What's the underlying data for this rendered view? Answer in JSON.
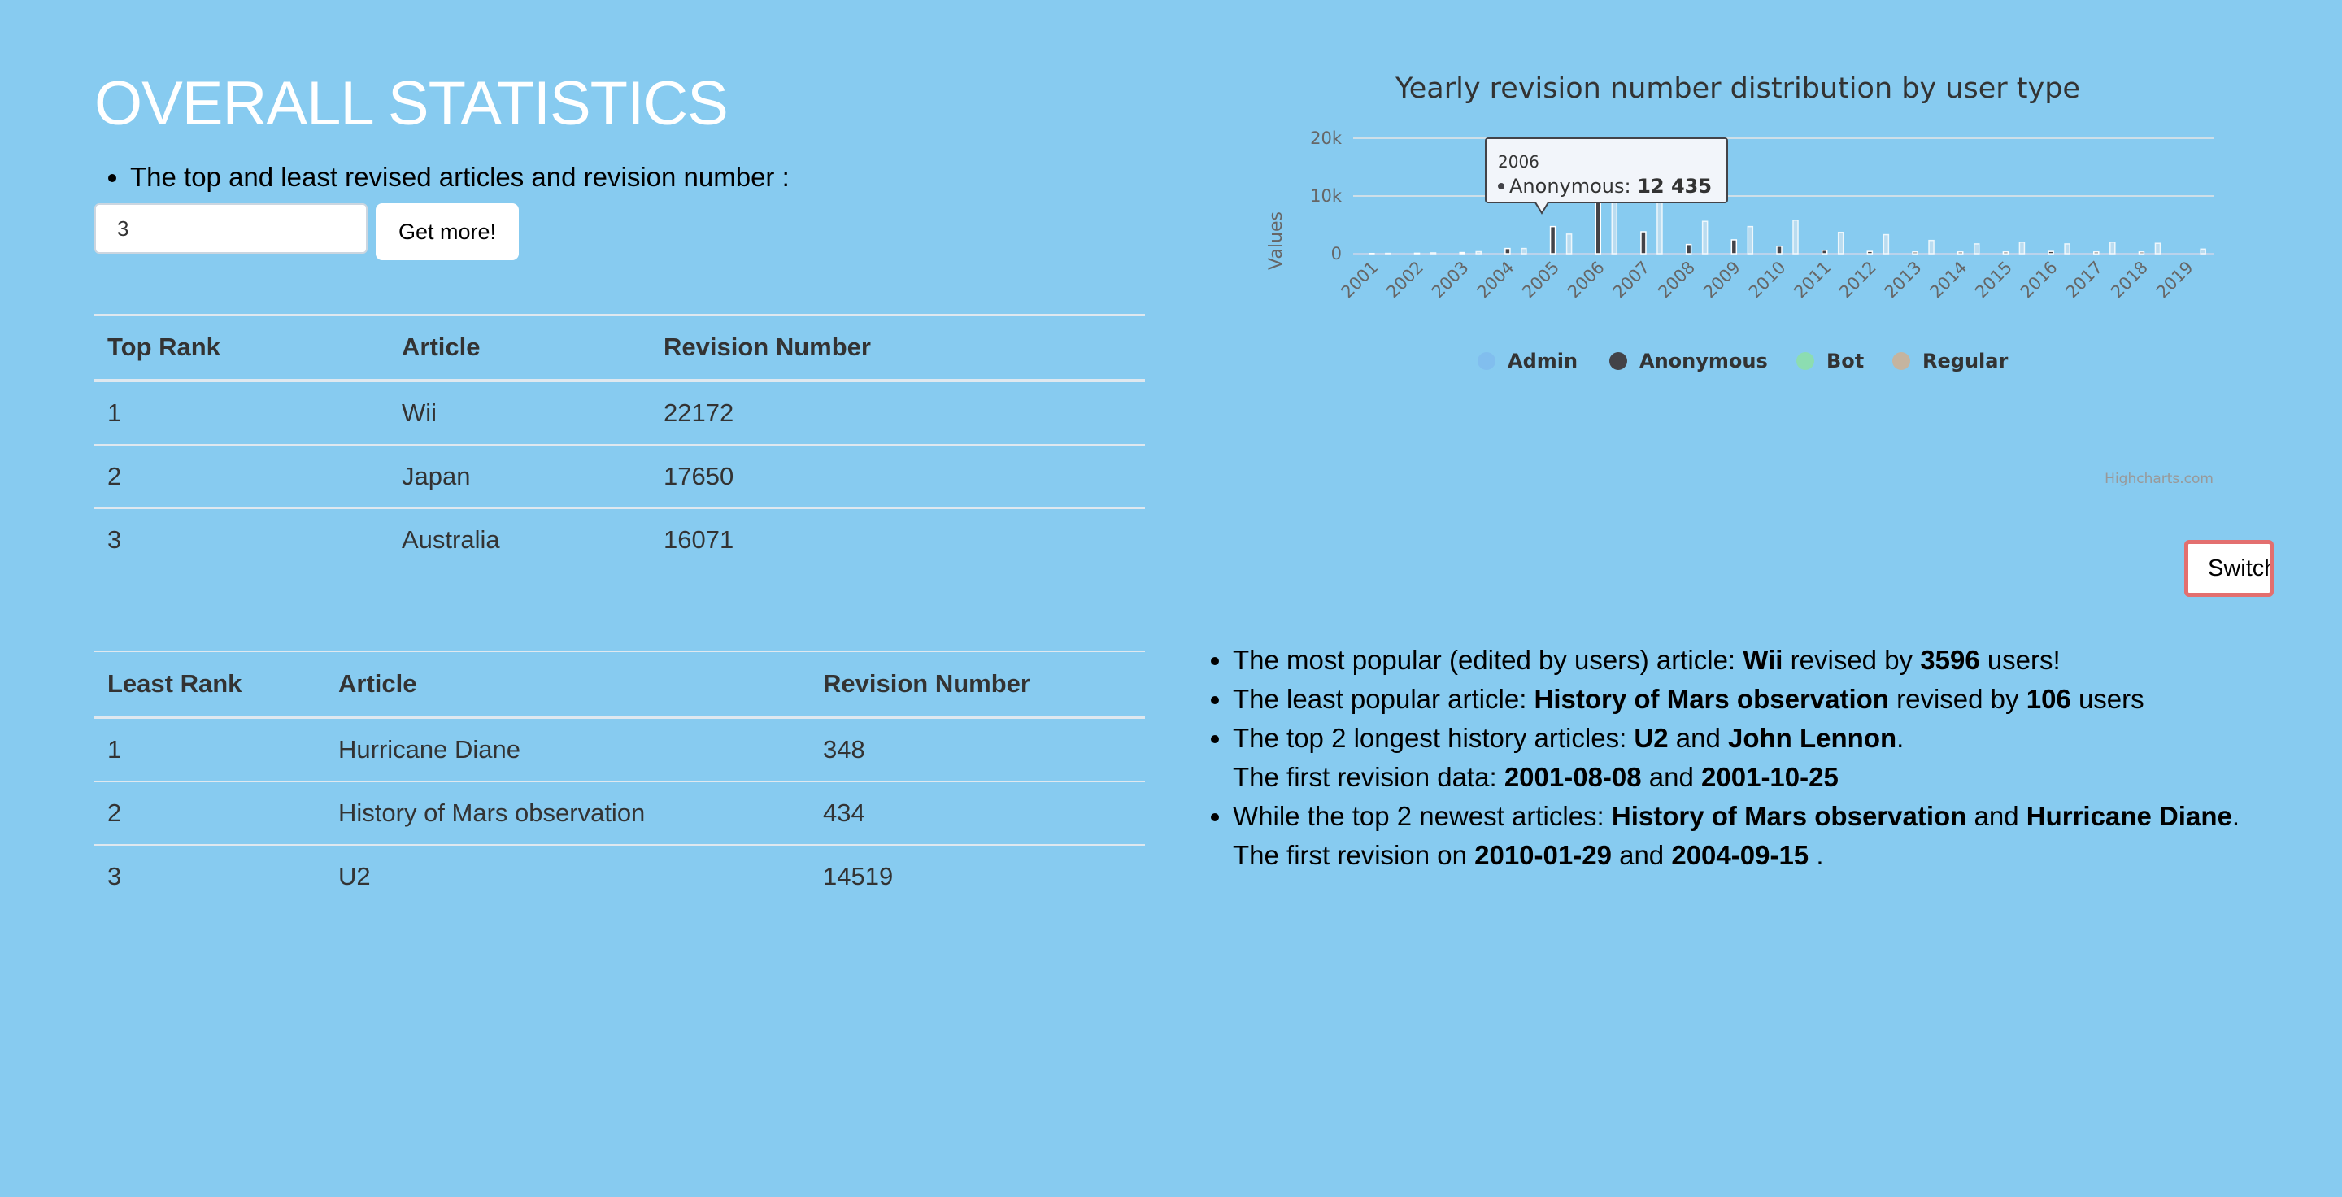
{
  "page": {
    "heading": "OVERALL STATISTICS",
    "intro_bullet": "The top and least revised articles and revision number :",
    "count_input": {
      "value": "3"
    },
    "get_more_label": "Get more!",
    "switch_label": "Switch"
  },
  "top_table": {
    "headers": [
      "Top Rank",
      "Article",
      "Revision Number"
    ],
    "rows": [
      [
        "1",
        "Wii",
        "22172"
      ],
      [
        "2",
        "Japan",
        "17650"
      ],
      [
        "3",
        "Australia",
        "16071"
      ]
    ]
  },
  "least_table": {
    "headers": [
      "Least Rank",
      "Article",
      "Revision Number"
    ],
    "rows": [
      [
        "1",
        "Hurricane Diane",
        "348"
      ],
      [
        "2",
        "History of Mars observation",
        "434"
      ],
      [
        "3",
        "U2",
        "14519"
      ]
    ]
  },
  "facts": {
    "f1": {
      "pre": "The most popular (edited by users) article: ",
      "article": "Wii",
      "mid": " revised by ",
      "count": "3596",
      "post": " users!"
    },
    "f2": {
      "pre": "The least popular article: ",
      "article": "History of Mars observation",
      "mid": " revised by ",
      "count": "106",
      "post": " users"
    },
    "f3": {
      "pre": "The top 2 longest history articles: ",
      "a1": "U2",
      "and": " and ",
      "a2": "John Lennon",
      "post": "."
    },
    "f3b": {
      "pre": "The first revision data: ",
      "d1": "2001-08-08",
      "and": " and ",
      "d2": "2001-10-25"
    },
    "f4": {
      "pre": "While the top 2 newest articles: ",
      "a1": "History of Mars observation",
      "and": " and ",
      "a2": "Hurricane Diane",
      "post": "."
    },
    "f4b": {
      "pre": "The first revision on ",
      "d1": "2010-01-29",
      "and": " and ",
      "d2": "2004-09-15",
      "post": " ."
    }
  },
  "chart_data": {
    "type": "bar",
    "title": "Yearly revision number distribution by user type",
    "ylabel": "Values",
    "ylim": [
      0,
      20000
    ],
    "y_ticks": [
      0,
      10000,
      20000
    ],
    "y_tick_labels": [
      "0",
      "10k",
      "20k"
    ],
    "categories": [
      "2001",
      "2002",
      "2003",
      "2004",
      "2005",
      "2006",
      "2007",
      "2008",
      "2009",
      "2010",
      "2011",
      "2012",
      "2013",
      "2014",
      "2015",
      "2016",
      "2017",
      "2018",
      "2019"
    ],
    "series": [
      {
        "name": "Admin",
        "color": "#7cb5ec",
        "values": [
          0,
          0,
          0,
          0,
          0,
          0,
          0,
          0,
          0,
          0,
          0,
          0,
          0,
          0,
          0,
          0,
          0,
          0,
          0
        ]
      },
      {
        "name": "Anonymous",
        "color": "#434348",
        "values": [
          40,
          80,
          200,
          900,
          4700,
          12435,
          3800,
          1600,
          2400,
          1300,
          600,
          400,
          300,
          300,
          300,
          400,
          300,
          300,
          0
        ]
      },
      {
        "name": "Bot",
        "color": "#90ed7d",
        "values": [
          0,
          0,
          0,
          0,
          0,
          0,
          0,
          0,
          0,
          0,
          0,
          0,
          0,
          0,
          0,
          0,
          0,
          0,
          0
        ]
      },
      {
        "name": "Regular",
        "color": "#f7a35c",
        "values": [
          60,
          150,
          350,
          900,
          3400,
          13000,
          11700,
          5600,
          4700,
          5800,
          3700,
          3300,
          2300,
          1700,
          2000,
          1700,
          2000,
          1800,
          800
        ]
      }
    ],
    "legend_position": "bottom-center",
    "grid": true,
    "credits": "Highcharts.com",
    "tooltip": {
      "category": "2006",
      "series": "Anonymous",
      "label": "Anonymous: ",
      "value": "12 435"
    }
  }
}
